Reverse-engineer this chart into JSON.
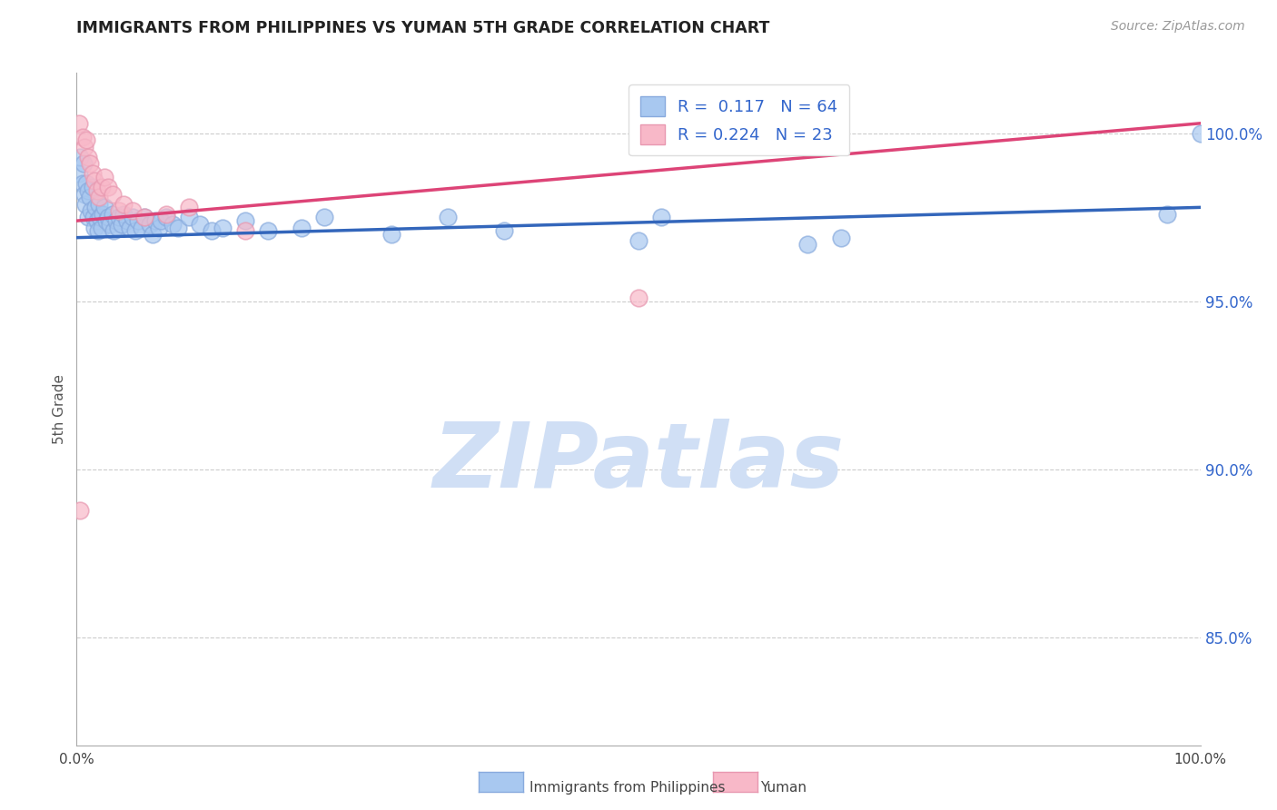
{
  "title": "IMMIGRANTS FROM PHILIPPINES VS YUMAN 5TH GRADE CORRELATION CHART",
  "source": "Source: ZipAtlas.com",
  "ylabel": "5th Grade",
  "xlim": [
    0.0,
    1.0
  ],
  "ylim": [
    0.818,
    1.018
  ],
  "yticks": [
    0.85,
    0.9,
    0.95,
    1.0
  ],
  "ytick_labels": [
    "85.0%",
    "90.0%",
    "95.0%",
    "100.0%"
  ],
  "xticks": [
    0.0,
    0.1,
    0.2,
    0.3,
    0.4,
    0.5,
    0.6,
    0.7,
    0.8,
    0.9,
    1.0
  ],
  "xtick_labels": [
    "0.0%",
    "",
    "",
    "",
    "",
    "",
    "",
    "",
    "",
    "",
    "100.0%"
  ],
  "legend_R1": "0.117",
  "legend_N1": "64",
  "legend_R2": "0.224",
  "legend_N2": "23",
  "blue_face_color": "#a8c8f0",
  "blue_edge_color": "#88aadd",
  "pink_face_color": "#f8b8c8",
  "pink_edge_color": "#e898b0",
  "blue_line_color": "#3366bb",
  "pink_line_color": "#dd4477",
  "legend_text_color": "#3366cc",
  "title_color": "#222222",
  "grid_color": "#cccccc",
  "watermark_color": "#d0dff5",
  "blue_scatter_x": [
    0.002,
    0.003,
    0.005,
    0.006,
    0.007,
    0.008,
    0.009,
    0.01,
    0.01,
    0.012,
    0.013,
    0.014,
    0.015,
    0.016,
    0.017,
    0.018,
    0.019,
    0.02,
    0.021,
    0.022,
    0.023,
    0.025,
    0.026,
    0.028,
    0.03,
    0.032,
    0.033,
    0.035,
    0.037,
    0.038,
    0.04,
    0.042,
    0.045,
    0.047,
    0.05,
    0.052,
    0.055,
    0.058,
    0.06,
    0.065,
    0.068,
    0.07,
    0.073,
    0.075,
    0.08,
    0.085,
    0.09,
    0.1,
    0.11,
    0.12,
    0.13,
    0.15,
    0.17,
    0.2,
    0.22,
    0.28,
    0.33,
    0.38,
    0.5,
    0.52,
    0.65,
    0.68,
    0.97,
    1.0
  ],
  "blue_scatter_y": [
    0.988,
    0.993,
    0.985,
    0.991,
    0.982,
    0.979,
    0.985,
    0.983,
    0.975,
    0.981,
    0.977,
    0.984,
    0.975,
    0.972,
    0.978,
    0.974,
    0.971,
    0.979,
    0.975,
    0.972,
    0.976,
    0.978,
    0.974,
    0.975,
    0.973,
    0.976,
    0.971,
    0.974,
    0.972,
    0.975,
    0.973,
    0.976,
    0.974,
    0.972,
    0.975,
    0.971,
    0.974,
    0.972,
    0.975,
    0.973,
    0.97,
    0.974,
    0.972,
    0.974,
    0.975,
    0.973,
    0.972,
    0.975,
    0.973,
    0.971,
    0.972,
    0.974,
    0.971,
    0.972,
    0.975,
    0.97,
    0.975,
    0.971,
    0.968,
    0.975,
    0.967,
    0.969,
    0.976,
    1.0
  ],
  "pink_scatter_x": [
    0.002,
    0.005,
    0.007,
    0.009,
    0.01,
    0.012,
    0.014,
    0.016,
    0.018,
    0.02,
    0.022,
    0.025,
    0.028,
    0.032,
    0.038,
    0.042,
    0.05,
    0.06,
    0.08,
    0.1,
    0.15,
    0.5,
    0.003
  ],
  "pink_scatter_y": [
    1.003,
    0.999,
    0.996,
    0.998,
    0.993,
    0.991,
    0.988,
    0.986,
    0.983,
    0.981,
    0.984,
    0.987,
    0.984,
    0.982,
    0.977,
    0.979,
    0.977,
    0.975,
    0.976,
    0.978,
    0.971,
    0.951,
    0.888
  ],
  "blue_line_x": [
    0.0,
    1.0
  ],
  "blue_line_y": [
    0.969,
    0.978
  ],
  "pink_line_x": [
    0.0,
    1.0
  ],
  "pink_line_y": [
    0.974,
    1.003
  ]
}
